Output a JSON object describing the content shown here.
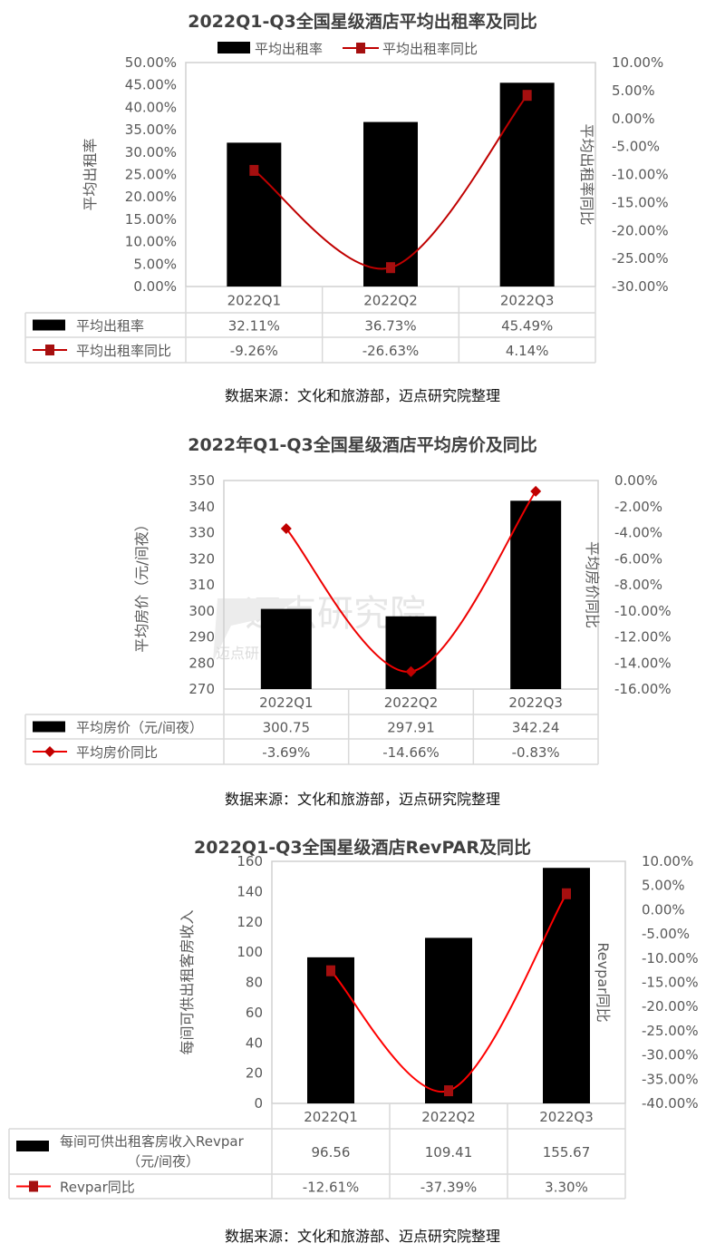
{
  "chart_data": [
    {
      "type": "bar+line",
      "title": "2022Q1-Q3全国星级酒店平均出租率及同比",
      "legend_placement": "top",
      "legend": [
        "平均出租率",
        "平均出租率同比"
      ],
      "categories": [
        "2022Q1",
        "2022Q2",
        "2022Q3"
      ],
      "series": [
        {
          "name": "平均出租率",
          "type": "bar",
          "axis": "left",
          "values": [
            32.11,
            36.73,
            45.49
          ],
          "labels": [
            "32.11%",
            "36.73%",
            "45.49%"
          ],
          "color": "#000000"
        },
        {
          "name": "平均出租率同比",
          "type": "line",
          "axis": "right",
          "marker": "square",
          "values": [
            -9.26,
            -26.63,
            4.14
          ],
          "labels": [
            "-9.26%",
            "-26.63%",
            "4.14%"
          ],
          "color": "#c00000",
          "marker_color": "#a50f0f"
        }
      ],
      "y_left": {
        "label": "平均出租率",
        "min": 0,
        "max": 50,
        "ticks": [
          "0.00%",
          "5.00%",
          "10.00%",
          "15.00%",
          "20.00%",
          "25.00%",
          "30.00%",
          "35.00%",
          "40.00%",
          "45.00%",
          "50.00%"
        ]
      },
      "y_right": {
        "label": "平均出租率同比",
        "min": -30,
        "max": 10,
        "ticks": [
          "-30.00%",
          "-25.00%",
          "-20.00%",
          "-15.00%",
          "-10.00%",
          "-5.00%",
          "0.00%",
          "5.00%",
          "10.00%"
        ]
      },
      "table_row_labels": [
        [
          "平均出租率"
        ],
        [
          "平均出租率同比"
        ]
      ],
      "source": "数据来源：文化和旅游部，迈点研究院整理",
      "grid": false
    },
    {
      "type": "bar+line",
      "title": "2022年Q1-Q3全国星级酒店平均房价及同比",
      "categories": [
        "2022Q1",
        "2022Q2",
        "2022Q3"
      ],
      "series": [
        {
          "name": "平均房价（元/间夜）",
          "type": "bar",
          "axis": "left",
          "values": [
            300.75,
            297.91,
            342.24
          ],
          "labels": [
            "300.75",
            "297.91",
            "342.24"
          ],
          "color": "#000000"
        },
        {
          "name": "平均房价同比",
          "type": "line",
          "axis": "right",
          "marker": "diamond",
          "values": [
            -3.69,
            -14.66,
            -0.83
          ],
          "labels": [
            "-3.69%",
            "-14.66%",
            "-0.83%"
          ],
          "color": "#ee0000",
          "marker_color": "#c00000"
        }
      ],
      "y_left": {
        "label": "平均房价（元/间夜）",
        "min": 270,
        "max": 350,
        "ticks": [
          "270",
          "280",
          "290",
          "300",
          "310",
          "320",
          "330",
          "340",
          "350"
        ]
      },
      "y_right": {
        "label": "平均房价同比",
        "min": -16,
        "max": 0,
        "ticks": [
          "-16.00%",
          "-14.00%",
          "-12.00%",
          "-10.00%",
          "-8.00%",
          "-6.00%",
          "-4.00%",
          "-2.00%",
          "0.00%"
        ]
      },
      "table_row_labels": [
        [
          "平均房价（元/间夜）"
        ],
        [
          "平均房价同比"
        ]
      ],
      "watermark": "迈点研究院",
      "watermark_small": "迈点研",
      "source": "数据来源：文化和旅游部，迈点研究院整理",
      "grid": false
    },
    {
      "type": "bar+line",
      "title": "2022Q1-Q3全国星级酒店RevPAR及同比",
      "categories": [
        "2022Q1",
        "2022Q2",
        "2022Q3"
      ],
      "series": [
        {
          "name": "每间可供出租客房收入Revpar（元/间夜）",
          "type": "bar",
          "axis": "left",
          "values": [
            96.56,
            109.41,
            155.67
          ],
          "labels": [
            "96.56",
            "109.41",
            "155.67"
          ],
          "color": "#000000"
        },
        {
          "name": "Revpar同比",
          "type": "line",
          "axis": "right",
          "marker": "square",
          "values": [
            -12.61,
            -37.39,
            3.3
          ],
          "labels": [
            "-12.61%",
            "-37.39%",
            "3.30%"
          ],
          "color": "#ff0000",
          "marker_color": "#a50f0f"
        }
      ],
      "y_left": {
        "label": "每间可供出租客房收入",
        "min": 0,
        "max": 160,
        "ticks": [
          "0",
          "20",
          "40",
          "60",
          "80",
          "100",
          "120",
          "140",
          "160"
        ]
      },
      "y_right": {
        "label": "Revpar同比",
        "min": -40,
        "max": 10,
        "ticks": [
          "-40.00%",
          "-35.00%",
          "-30.00%",
          "-25.00%",
          "-20.00%",
          "-15.00%",
          "-10.00%",
          "-5.00%",
          "0.00%",
          "5.00%",
          "10.00%"
        ]
      },
      "table_row_labels": [
        [
          "每间可供出租客房收入Revpar",
          "（元/间夜）"
        ],
        [
          "Revpar同比"
        ]
      ],
      "source": "数据来源：文化和旅游部、迈点研究院整理",
      "grid": false
    }
  ]
}
